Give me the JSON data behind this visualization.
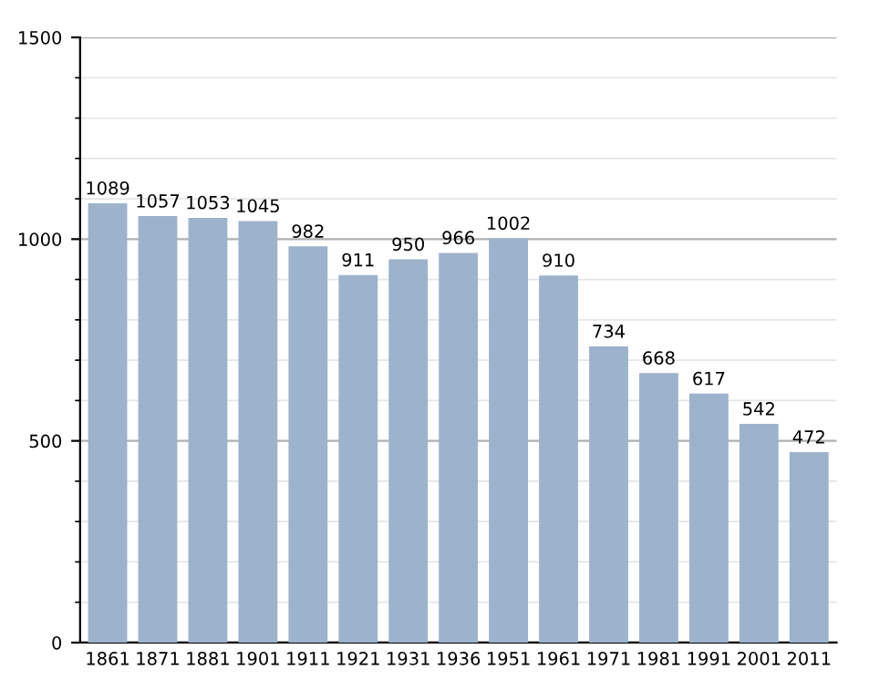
{
  "chart_data": {
    "type": "bar",
    "categories": [
      "1861",
      "1871",
      "1881",
      "1901",
      "1911",
      "1921",
      "1931",
      "1936",
      "1951",
      "1961",
      "1971",
      "1981",
      "1991",
      "2001",
      "2011"
    ],
    "values": [
      1089,
      1057,
      1053,
      1045,
      982,
      911,
      950,
      966,
      1002,
      910,
      734,
      668,
      617,
      542,
      472
    ],
    "color": "#9db3cc",
    "ylim": [
      0,
      1500
    ],
    "yticks": [
      0,
      500,
      1000,
      1500
    ],
    "grid": "y",
    "data_labels": true
  }
}
